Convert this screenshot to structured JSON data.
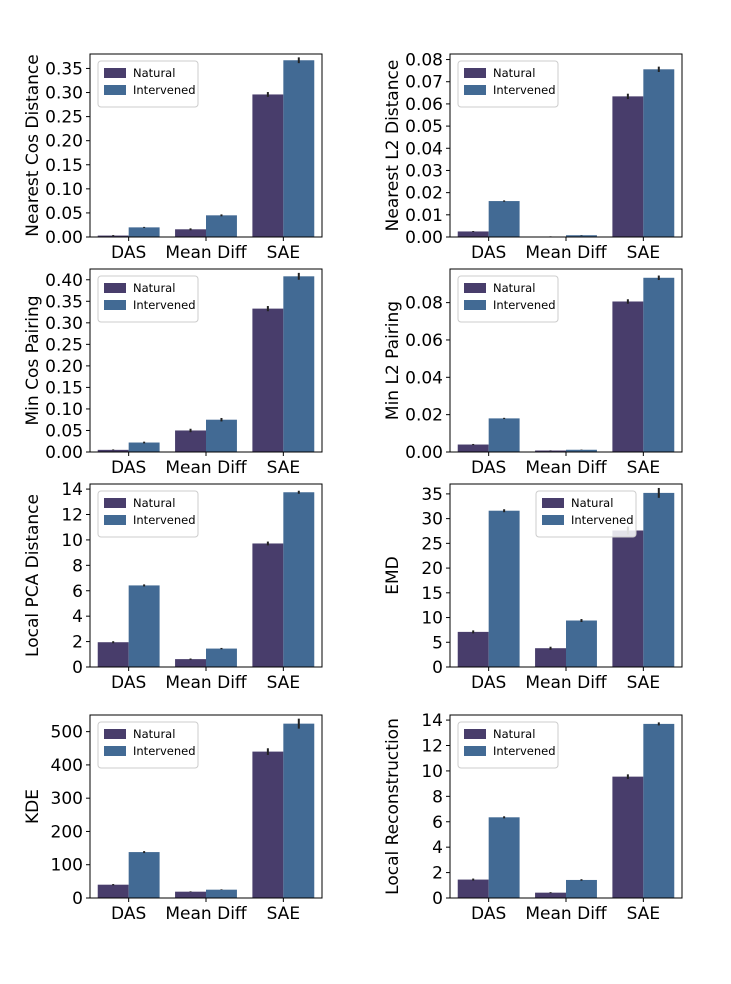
{
  "colors": {
    "natural": "#483d6b",
    "intervened": "#426a94",
    "errbar": "#222222"
  },
  "chart_data": [
    {
      "type": "bar",
      "ylabel": "Nearest Cos Distance",
      "categories": [
        "DAS",
        "Mean Diff",
        "SAE"
      ],
      "series": [
        {
          "name": "Natural",
          "values": [
            0.003,
            0.016,
            0.296
          ],
          "err": [
            0.001,
            0.002,
            0.005
          ]
        },
        {
          "name": "Intervened",
          "values": [
            0.02,
            0.045,
            0.367
          ],
          "err": [
            0.001,
            0.002,
            0.006
          ]
        }
      ],
      "ylim": [
        0,
        0.38
      ],
      "yticks": [
        "0.00",
        "0.05",
        "0.10",
        "0.15",
        "0.20",
        "0.25",
        "0.30",
        "0.35"
      ],
      "legend": "top-left"
    },
    {
      "type": "bar",
      "ylabel": "Nearest L2 Distance",
      "categories": [
        "DAS",
        "Mean Diff",
        "SAE"
      ],
      "series": [
        {
          "name": "Natural",
          "values": [
            0.0025,
            0.0002,
            0.0634
          ],
          "err": [
            0.0002,
            0.0001,
            0.0012
          ]
        },
        {
          "name": "Intervened",
          "values": [
            0.0162,
            0.0008,
            0.0756
          ],
          "err": [
            0.0003,
            0.0001,
            0.0012
          ]
        }
      ],
      "ylim": [
        0,
        0.0825
      ],
      "yticks": [
        "0.00",
        "0.01",
        "0.02",
        "0.03",
        "0.04",
        "0.05",
        "0.06",
        "0.07",
        "0.08"
      ],
      "legend": "top-left"
    },
    {
      "type": "bar",
      "ylabel": "Min Cos Pairing",
      "categories": [
        "DAS",
        "Mean Diff",
        "SAE"
      ],
      "series": [
        {
          "name": "Natural",
          "values": [
            0.005,
            0.05,
            0.333
          ],
          "err": [
            0.001,
            0.004,
            0.006
          ]
        },
        {
          "name": "Intervened",
          "values": [
            0.022,
            0.075,
            0.408
          ],
          "err": [
            0.002,
            0.004,
            0.008
          ]
        }
      ],
      "ylim": [
        0,
        0.425
      ],
      "yticks": [
        "0.00",
        "0.05",
        "0.10",
        "0.15",
        "0.20",
        "0.25",
        "0.30",
        "0.35",
        "0.40"
      ],
      "legend": "top-left"
    },
    {
      "type": "bar",
      "ylabel": "Min L2 Pairing",
      "categories": [
        "DAS",
        "Mean Diff",
        "SAE"
      ],
      "series": [
        {
          "name": "Natural",
          "values": [
            0.004,
            0.0008,
            0.0806
          ],
          "err": [
            0.0003,
            0.0001,
            0.0012
          ]
        },
        {
          "name": "Intervened",
          "values": [
            0.018,
            0.0012,
            0.0933
          ],
          "err": [
            0.0003,
            0.0001,
            0.0012
          ]
        }
      ],
      "ylim": [
        0,
        0.098
      ],
      "yticks": [
        "0.00",
        "0.02",
        "0.04",
        "0.06",
        "0.08"
      ],
      "legend": "top-left"
    },
    {
      "type": "bar",
      "ylabel": "Local PCA Distance",
      "categories": [
        "DAS",
        "Mean Diff",
        "SAE"
      ],
      "series": [
        {
          "name": "Natural",
          "values": [
            1.95,
            0.62,
            9.72
          ],
          "err": [
            0.08,
            0.05,
            0.15
          ]
        },
        {
          "name": "Intervened",
          "values": [
            6.42,
            1.45,
            13.75
          ],
          "err": [
            0.08,
            0.05,
            0.12
          ]
        }
      ],
      "ylim": [
        0,
        14.4
      ],
      "yticks": [
        "0",
        "2",
        "4",
        "6",
        "8",
        "10",
        "12",
        "14"
      ],
      "legend": "top-left"
    },
    {
      "type": "bar",
      "ylabel": "EMD",
      "categories": [
        "DAS",
        "Mean Diff",
        "SAE"
      ],
      "series": [
        {
          "name": "Natural",
          "values": [
            7.1,
            3.8,
            27.6
          ],
          "err": [
            0.3,
            0.3,
            0.8
          ]
        },
        {
          "name": "Intervened",
          "values": [
            31.6,
            9.4,
            35.2
          ],
          "err": [
            0.3,
            0.3,
            1.0
          ]
        }
      ],
      "ylim": [
        0,
        37
      ],
      "yticks": [
        "0",
        "5",
        "10",
        "15",
        "20",
        "25",
        "30",
        "35"
      ],
      "legend": "top-center"
    },
    {
      "type": "bar",
      "ylabel": "KDE",
      "categories": [
        "DAS",
        "Mean Diff",
        "SAE"
      ],
      "series": [
        {
          "name": "Natural",
          "values": [
            40,
            19,
            440
          ],
          "err": [
            2,
            1,
            10
          ]
        },
        {
          "name": "Intervened",
          "values": [
            138,
            25,
            524
          ],
          "err": [
            3,
            1,
            15
          ]
        }
      ],
      "ylim": [
        0,
        550
      ],
      "yticks": [
        "0",
        "100",
        "200",
        "300",
        "400",
        "500"
      ],
      "legend": "top-left"
    },
    {
      "type": "bar",
      "ylabel": "Local Reconstruction",
      "categories": [
        "DAS",
        "Mean Diff",
        "SAE"
      ],
      "series": [
        {
          "name": "Natural",
          "values": [
            1.45,
            0.42,
            9.55
          ],
          "err": [
            0.08,
            0.04,
            0.18
          ]
        },
        {
          "name": "Intervened",
          "values": [
            6.35,
            1.42,
            13.7
          ],
          "err": [
            0.08,
            0.06,
            0.12
          ]
        }
      ],
      "ylim": [
        0,
        14.4
      ],
      "yticks": [
        "0",
        "2",
        "4",
        "6",
        "8",
        "10",
        "12",
        "14"
      ],
      "legend": "top-left"
    }
  ]
}
